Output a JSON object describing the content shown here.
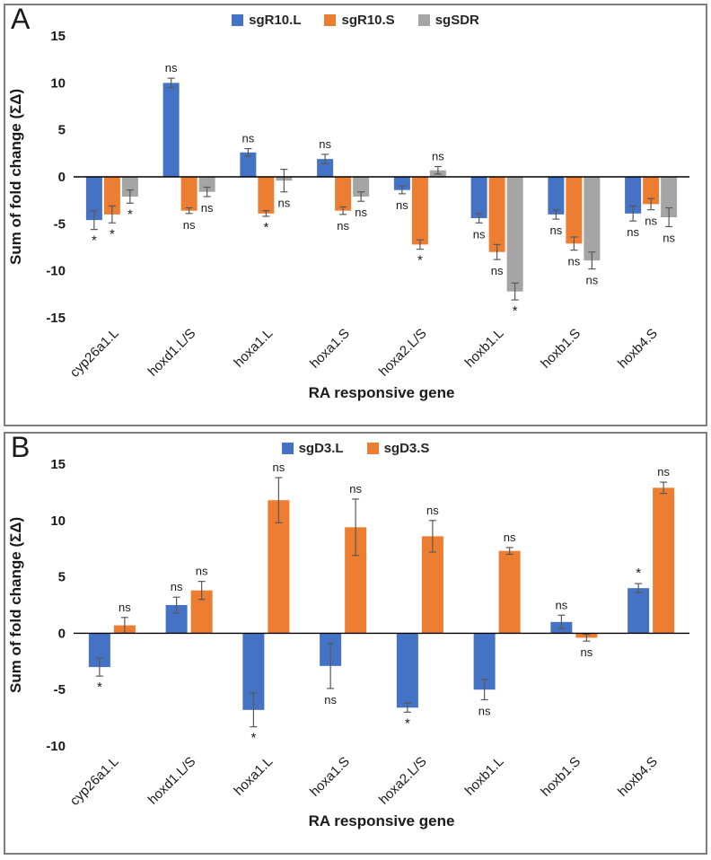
{
  "page": {
    "background": "#ffffff",
    "panel_border_color": "#7c7c7c"
  },
  "chart_data": [
    {
      "type": "bar",
      "panel": "A",
      "title": "",
      "xlabel": "RA responsive gene",
      "ylabel": "Sum of fold change (ΣΔ)",
      "ylim": [
        -15,
        15
      ],
      "yticks": [
        -15,
        -10,
        -5,
        0,
        5,
        10,
        15
      ],
      "grid": false,
      "legend_position": "top-center",
      "error_bars": true,
      "categories": [
        "cyp26a1.L",
        "hoxd1.L/S",
        "hoxa1.L",
        "hoxa1.S",
        "hoxa2.L/S",
        "hoxb1.L",
        "hoxb1.S",
        "hoxb4.S"
      ],
      "series": [
        {
          "name": "sgR10.L",
          "color": "#4472C4",
          "values": [
            -4.6,
            10.0,
            2.6,
            1.9,
            -1.4,
            -4.4,
            -4.0,
            -3.9
          ],
          "errors": [
            1.0,
            0.5,
            0.4,
            0.5,
            0.4,
            0.5,
            0.5,
            0.8
          ],
          "significance": [
            "*",
            "ns",
            "ns",
            "ns",
            "ns",
            "ns",
            "ns",
            "ns"
          ]
        },
        {
          "name": "sgR10.S",
          "color": "#ED7D31",
          "values": [
            -4.0,
            -3.6,
            -3.9,
            -3.6,
            -7.2,
            -8.0,
            -7.1,
            -2.9
          ],
          "errors": [
            0.9,
            0.3,
            0.3,
            0.4,
            0.5,
            0.8,
            0.7,
            0.6
          ],
          "significance": [
            "*",
            "ns",
            "*",
            "ns",
            "*",
            "ns",
            "ns",
            "ns"
          ]
        },
        {
          "name": "sgSDR",
          "color": "#A5A5A5",
          "values": [
            -2.1,
            -1.6,
            -0.4,
            -2.1,
            0.7,
            -12.2,
            -8.9,
            -4.3
          ],
          "errors": [
            0.7,
            0.5,
            1.2,
            0.5,
            0.4,
            0.9,
            0.9,
            1.0
          ],
          "significance": [
            "*",
            "ns",
            "ns",
            "ns",
            "ns",
            "*",
            "ns",
            "ns"
          ]
        }
      ]
    },
    {
      "type": "bar",
      "panel": "B",
      "title": "",
      "xlabel": "RA responsive gene",
      "ylabel": "Sum of fold change (ΣΔ)",
      "ylim": [
        -10,
        15
      ],
      "yticks": [
        -10,
        -5,
        0,
        5,
        10,
        15
      ],
      "grid": false,
      "legend_position": "top-center",
      "error_bars": true,
      "categories": [
        "cyp26a1.L",
        "hoxd1.L/S",
        "hoxa1.L",
        "hoxa1.S",
        "hoxa2.L/S",
        "hoxb1.L",
        "hoxb1.S",
        "hoxb4.S"
      ],
      "series": [
        {
          "name": "sgD3.L",
          "color": "#4472C4",
          "values": [
            -3.0,
            2.5,
            -6.8,
            -2.9,
            -6.6,
            -5.0,
            1.0,
            4.0
          ],
          "errors": [
            0.8,
            0.7,
            1.5,
            2.0,
            0.4,
            0.9,
            0.6,
            0.4
          ],
          "significance": [
            "*",
            "ns",
            "*",
            "ns",
            "*",
            "ns",
            "ns",
            "*"
          ]
        },
        {
          "name": "sgD3.S",
          "color": "#ED7D31",
          "values": [
            0.7,
            3.8,
            11.8,
            9.4,
            8.6,
            7.3,
            -0.4,
            12.9
          ],
          "errors": [
            0.7,
            0.8,
            2.0,
            2.5,
            1.4,
            0.3,
            0.3,
            0.5
          ],
          "significance": [
            "ns",
            "ns",
            "ns",
            "ns",
            "ns",
            "ns",
            "ns",
            "ns"
          ]
        }
      ]
    }
  ]
}
